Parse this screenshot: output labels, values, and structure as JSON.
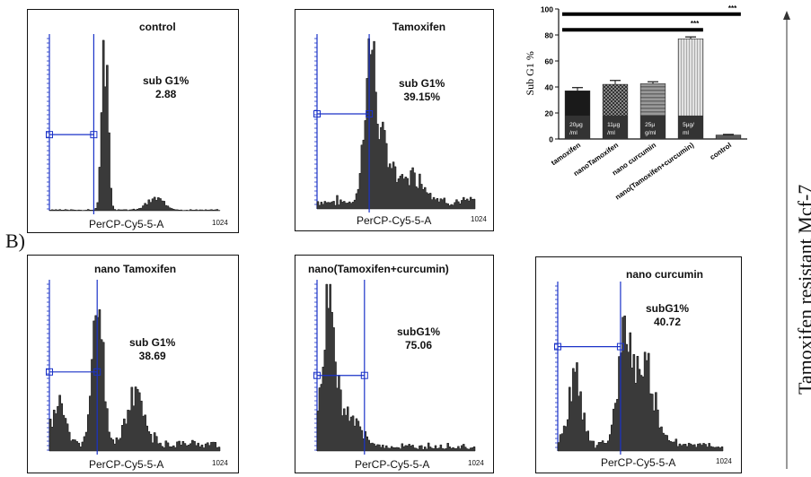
{
  "section_label": "B)",
  "side_label": "Tamoxifen resistant Mcf-7",
  "panels": [
    {
      "id": "control",
      "title": "control",
      "label": "sub G1%",
      "value": "2.88",
      "xaxis": "PerCP-Cy5-5-A",
      "xmax": "1024"
    },
    {
      "id": "tamoxifen",
      "title": "Tamoxifen",
      "label": "sub G1%",
      "value": "39.15%",
      "xaxis": "PerCP-Cy5-5-A",
      "xmax": "1024"
    },
    {
      "id": "nano-tamoxifen",
      "title": "nano Tamoxifen",
      "label": "sub G1%",
      "value": "38.69",
      "xaxis": "PerCP-Cy5-5-A",
      "xmax": "1024"
    },
    {
      "id": "nano-tam-cur",
      "title": "nano(Tamoxifen+curcumin)",
      "label": "subG1%",
      "value": "75.06",
      "xaxis": "PerCP-Cy5-5-A",
      "xmax": "1024"
    },
    {
      "id": "nano-curcumin",
      "title": "nano curcumin",
      "label": "subG1%",
      "value": "40.72",
      "xaxis": "PerCP-Cy5-5-A",
      "xmax": "1024"
    }
  ],
  "chart_data": {
    "type": "bar",
    "ylabel": "Sub G1 %",
    "ylim": [
      0,
      100
    ],
    "yticks": [
      "0",
      "20",
      "40",
      "60",
      "80",
      "100"
    ],
    "categories": [
      "tamoxifen",
      "nanoTamoxifen",
      "nano curcumin",
      "nano(Tamoxifen+curcumin)",
      "control"
    ],
    "values": [
      37,
      42,
      42.5,
      77,
      3
    ],
    "errors": [
      2.5,
      3,
      1.5,
      1.5,
      0.5
    ],
    "dose_labels": [
      "20µg\n/ml",
      "11µg\n/ml",
      "25µ\ng/ml",
      "5µg/\nml",
      ""
    ],
    "fills": [
      "solid-black",
      "checker",
      "hatched",
      "striped-light",
      "solid-gray"
    ],
    "significance": [
      {
        "from": 0,
        "to": 4,
        "label": "***"
      },
      {
        "from": 0,
        "to": 3,
        "label": "***"
      }
    ],
    "colors": {
      "dark": "#1a1a1a",
      "mid": "#555555",
      "light": "#cfcfcf",
      "control": "#666666"
    }
  }
}
